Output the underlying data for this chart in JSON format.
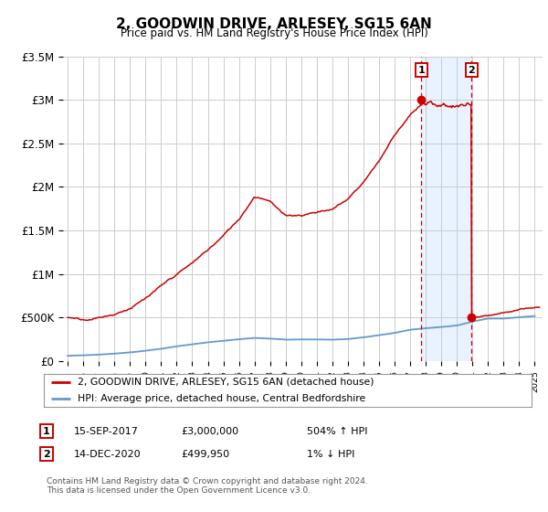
{
  "title": "2, GOODWIN DRIVE, ARLESEY, SG15 6AN",
  "subtitle": "Price paid vs. HM Land Registry's House Price Index (HPI)",
  "ylim": [
    0,
    3500000
  ],
  "yticks": [
    0,
    500000,
    1000000,
    1500000,
    2000000,
    2500000,
    3000000,
    3500000
  ],
  "ytick_labels": [
    "£0",
    "£500K",
    "£1M",
    "£1.5M",
    "£2M",
    "£2.5M",
    "£3M",
    "£3.5M"
  ],
  "xlim": [
    1994.7,
    2025.5
  ],
  "xticks": [
    1995,
    1996,
    1997,
    1998,
    1999,
    2000,
    2001,
    2002,
    2003,
    2004,
    2005,
    2006,
    2007,
    2008,
    2009,
    2010,
    2011,
    2012,
    2013,
    2014,
    2015,
    2016,
    2017,
    2018,
    2019,
    2020,
    2021,
    2022,
    2023,
    2024,
    2025
  ],
  "red_line_label": "2, GOODWIN DRIVE, ARLESEY, SG15 6AN (detached house)",
  "blue_line_label": "HPI: Average price, detached house, Central Bedfordshire",
  "red_color": "#cc0000",
  "blue_color": "#6699cc",
  "sale1_x": 2017.71,
  "sale1_y": 3000000,
  "sale1_label": "1",
  "sale1_date": "15-SEP-2017",
  "sale1_price": "£3,000,000",
  "sale1_hpi": "504% ↑ HPI",
  "sale2_x": 2020.95,
  "sale2_y": 499950,
  "sale2_label": "2",
  "sale2_date": "14-DEC-2020",
  "sale2_price": "£499,950",
  "sale2_hpi": "1% ↓ HPI",
  "footer": "Contains HM Land Registry data © Crown copyright and database right 2024.\nThis data is licensed under the Open Government Licence v3.0.",
  "bg_color": "#ffffff",
  "plot_bg_color": "#ffffff",
  "grid_color": "#cccccc",
  "shaded_region_color": "#ddeeff"
}
